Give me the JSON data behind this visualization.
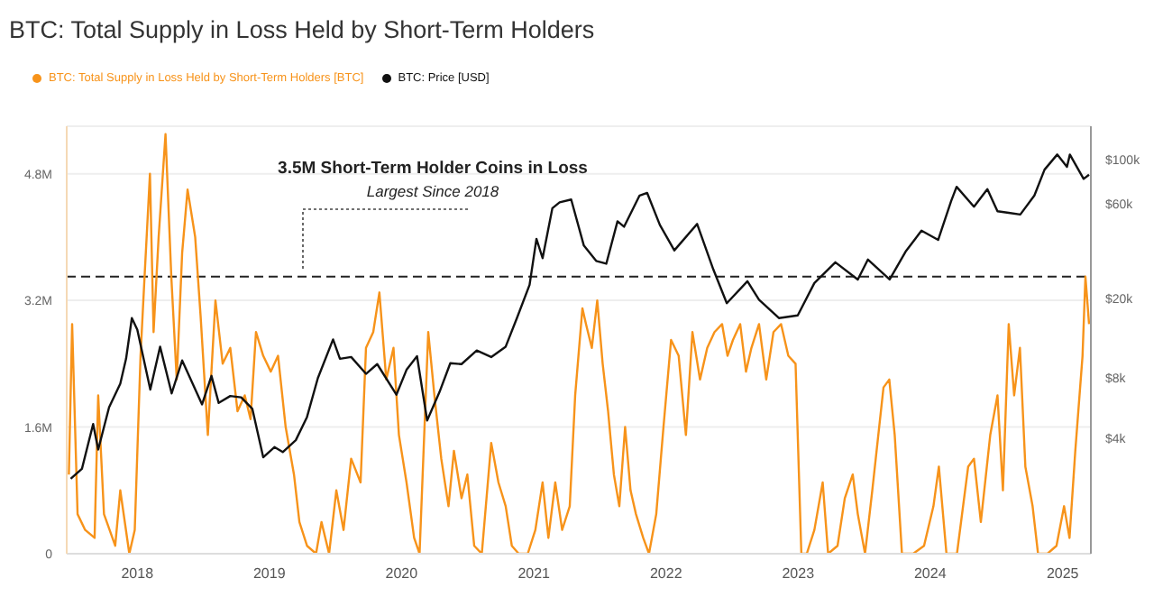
{
  "chart_data": {
    "type": "line",
    "title": "BTC: Total Supply in Loss Held by Short-Term Holders",
    "annotations": [
      "3.5M Short-Term Holder Coins in Loss",
      "Largest Since 2018"
    ],
    "xlim": [
      "2017-06-20",
      "2025-03-20"
    ],
    "xticks": [
      "2018",
      "2019",
      "2020",
      "2021",
      "2022",
      "2023",
      "2024",
      "2025"
    ],
    "ylim": [
      0,
      5400000
    ],
    "yticks": [
      0,
      {
        "value": 1600000,
        "label": "1.6M"
      },
      {
        "value": 3200000,
        "label": "3.2M"
      },
      {
        "value": 4800000,
        "label": "4.8M"
      }
    ],
    "y2lim": [
      1050,
      147000
    ],
    "y2ticks": [
      {
        "value": 4000,
        "label": "$4k"
      },
      {
        "value": 8000,
        "label": "$8k"
      },
      {
        "value": 20000,
        "label": "$20k"
      },
      {
        "value": 60000,
        "label": "$60k"
      },
      {
        "value": 100000,
        "label": "$100k"
      }
    ],
    "log": "y2",
    "grid": "y",
    "legend": "top left",
    "marker": "none",
    "line_style": "solid",
    "ref_lines": [
      {
        "axis": "y",
        "value": 3500000,
        "color": "#222222",
        "line_style": "dashed"
      }
    ],
    "series": [
      {
        "name": "BTC: Total Supply in Loss Held by Short-Term Holders [BTC]",
        "color": "#f7931a",
        "x": [
          "2017-06-26",
          "2017-07-05",
          "2017-07-20",
          "2017-08-10",
          "2017-09-05",
          "2017-09-15",
          "2017-10-01",
          "2017-11-01",
          "2017-11-15",
          "2017-12-10",
          "2017-12-25",
          "2018-01-10",
          "2018-01-20",
          "2018-02-05",
          "2018-02-15",
          "2018-03-01",
          "2018-03-20",
          "2018-04-05",
          "2018-04-20",
          "2018-05-05",
          "2018-05-20",
          "2018-06-10",
          "2018-06-25",
          "2018-07-15",
          "2018-08-05",
          "2018-08-25",
          "2018-09-15",
          "2018-10-05",
          "2018-10-25",
          "2018-11-10",
          "2018-11-25",
          "2018-12-15",
          "2019-01-05",
          "2019-01-25",
          "2019-02-15",
          "2019-03-10",
          "2019-03-25",
          "2019-04-15",
          "2019-05-10",
          "2019-05-25",
          "2019-06-15",
          "2019-07-05",
          "2019-07-25",
          "2019-08-15",
          "2019-09-10",
          "2019-09-25",
          "2019-10-15",
          "2019-11-01",
          "2019-11-20",
          "2019-12-10",
          "2019-12-25",
          "2020-01-15",
          "2020-02-05",
          "2020-02-20",
          "2020-03-15",
          "2020-04-01",
          "2020-04-20",
          "2020-05-10",
          "2020-05-25",
          "2020-06-15",
          "2020-07-01",
          "2020-07-20",
          "2020-08-10",
          "2020-09-05",
          "2020-09-25",
          "2020-10-15",
          "2020-11-01",
          "2020-11-20",
          "2020-12-15",
          "2021-01-05",
          "2021-01-25",
          "2021-02-10",
          "2021-03-01",
          "2021-03-20",
          "2021-04-10",
          "2021-04-25",
          "2021-05-15",
          "2021-05-25",
          "2021-06-10",
          "2021-06-25",
          "2021-07-10",
          "2021-07-25",
          "2021-08-10",
          "2021-08-25",
          "2021-09-10",
          "2021-09-25",
          "2021-10-10",
          "2021-10-30",
          "2021-11-15",
          "2021-12-05",
          "2021-12-25",
          "2022-01-15",
          "2022-02-05",
          "2022-02-25",
          "2022-03-15",
          "2022-04-05",
          "2022-04-25",
          "2022-05-15",
          "2022-06-05",
          "2022-06-20",
          "2022-07-05",
          "2022-07-25",
          "2022-08-10",
          "2022-08-25",
          "2022-09-15",
          "2022-10-05",
          "2022-10-25",
          "2022-11-15",
          "2022-12-05",
          "2022-12-25",
          "2023-01-10",
          "2023-01-25",
          "2023-02-15",
          "2023-03-10",
          "2023-03-25",
          "2023-04-20",
          "2023-05-10",
          "2023-06-01",
          "2023-06-15",
          "2023-07-05",
          "2023-07-25",
          "2023-08-25",
          "2023-09-10",
          "2023-09-25",
          "2023-10-15",
          "2023-11-15",
          "2023-12-15",
          "2024-01-10",
          "2024-01-25",
          "2024-02-15",
          "2024-03-15",
          "2024-04-15",
          "2024-05-01",
          "2024-05-20",
          "2024-06-15",
          "2024-07-05",
          "2024-07-20",
          "2024-08-05",
          "2024-08-20",
          "2024-09-05",
          "2024-09-20",
          "2024-10-10",
          "2024-10-25",
          "2024-11-20",
          "2024-12-15",
          "2025-01-05",
          "2025-01-20",
          "2025-02-05",
          "2025-02-25",
          "2025-03-05",
          "2025-03-15"
        ],
        "values": [
          1000000,
          2900000,
          500000,
          300000,
          200000,
          2000000,
          500000,
          100000,
          800000,
          0,
          300000,
          2500000,
          3400000,
          4800000,
          2800000,
          4000000,
          5300000,
          3500000,
          2200000,
          3800000,
          4600000,
          4000000,
          3000000,
          1500000,
          3200000,
          2400000,
          2600000,
          1800000,
          2000000,
          1700000,
          2800000,
          2500000,
          2300000,
          2500000,
          1600000,
          1000000,
          400000,
          100000,
          0,
          400000,
          0,
          800000,
          300000,
          1200000,
          900000,
          2600000,
          2800000,
          3300000,
          2200000,
          2600000,
          1500000,
          900000,
          200000,
          0,
          2800000,
          2000000,
          1200000,
          600000,
          1300000,
          700000,
          1000000,
          100000,
          0,
          1400000,
          900000,
          600000,
          100000,
          0,
          0,
          300000,
          900000,
          200000,
          900000,
          300000,
          600000,
          2000000,
          3100000,
          2900000,
          2600000,
          3200000,
          2400000,
          1800000,
          1000000,
          600000,
          1600000,
          800000,
          500000,
          200000,
          0,
          500000,
          1600000,
          2700000,
          2500000,
          1500000,
          2800000,
          2200000,
          2600000,
          2800000,
          2900000,
          2500000,
          2700000,
          2900000,
          2300000,
          2600000,
          2900000,
          2200000,
          2800000,
          2900000,
          2500000,
          2400000,
          0,
          0,
          300000,
          900000,
          0,
          100000,
          700000,
          1000000,
          500000,
          0,
          800000,
          2100000,
          2200000,
          1500000,
          0,
          0,
          100000,
          600000,
          1100000,
          0,
          0,
          1100000,
          1200000,
          400000,
          1500000,
          2000000,
          800000,
          2900000,
          2000000,
          2600000,
          1100000,
          600000,
          0,
          0,
          100000,
          600000,
          200000,
          1300000,
          2500000,
          3500000,
          2900000
        ]
      },
      {
        "name": "BTC: Price [USD]",
        "color": "#111111",
        "axis": "y2",
        "x": [
          "2017-07-01",
          "2017-08-01",
          "2017-09-01",
          "2017-09-15",
          "2017-10-15",
          "2017-11-15",
          "2017-12-01",
          "2017-12-17",
          "2018-01-01",
          "2018-02-06",
          "2018-03-05",
          "2018-04-06",
          "2018-05-05",
          "2018-06-29",
          "2018-07-25",
          "2018-08-14",
          "2018-09-15",
          "2018-10-15",
          "2018-11-15",
          "2018-12-15",
          "2019-01-15",
          "2019-02-07",
          "2019-03-15",
          "2019-04-15",
          "2019-05-15",
          "2019-06-26",
          "2019-07-15",
          "2019-08-15",
          "2019-09-25",
          "2019-10-26",
          "2019-12-18",
          "2020-01-15",
          "2020-02-13",
          "2020-03-12",
          "2020-04-15",
          "2020-05-15",
          "2020-06-15",
          "2020-07-27",
          "2020-09-05",
          "2020-10-15",
          "2020-11-15",
          "2020-12-20",
          "2021-01-08",
          "2021-01-25",
          "2021-02-21",
          "2021-03-13",
          "2021-04-14",
          "2021-05-19",
          "2021-06-22",
          "2021-07-20",
          "2021-08-20",
          "2021-09-07",
          "2021-10-20",
          "2021-11-10",
          "2021-12-15",
          "2022-01-24",
          "2022-03-28",
          "2022-05-12",
          "2022-06-18",
          "2022-08-14",
          "2022-09-15",
          "2022-11-09",
          "2022-12-31",
          "2023-02-15",
          "2023-04-14",
          "2023-06-15",
          "2023-07-13",
          "2023-09-11",
          "2023-10-25",
          "2023-12-08",
          "2024-01-23",
          "2024-02-28",
          "2024-03-14",
          "2024-05-01",
          "2024-06-07",
          "2024-07-05",
          "2024-08-05",
          "2024-09-06",
          "2024-10-15",
          "2024-11-12",
          "2024-12-17",
          "2025-01-13",
          "2025-01-21",
          "2025-02-28",
          "2025-03-15"
        ],
        "values": [
          2500,
          2800,
          4700,
          3500,
          5700,
          7500,
          10000,
          16000,
          14000,
          7000,
          11500,
          6700,
          9800,
          5900,
          8200,
          6000,
          6500,
          6400,
          5600,
          3200,
          3600,
          3400,
          3900,
          5100,
          8000,
          12500,
          10000,
          10200,
          8400,
          9400,
          6600,
          8800,
          10300,
          4900,
          6800,
          9500,
          9400,
          11000,
          10200,
          11500,
          16000,
          23500,
          40000,
          32000,
          57000,
          61000,
          63000,
          37000,
          31000,
          30000,
          49000,
          46000,
          66000,
          68000,
          47000,
          35000,
          47500,
          28000,
          19000,
          24500,
          19800,
          16000,
          16500,
          24000,
          30500,
          25000,
          31500,
          25000,
          34500,
          44000,
          39500,
          62000,
          73000,
          58000,
          71000,
          55000,
          54000,
          53000,
          66000,
          89000,
          106000,
          92000,
          106000,
          80000,
          84000
        ]
      }
    ]
  }
}
